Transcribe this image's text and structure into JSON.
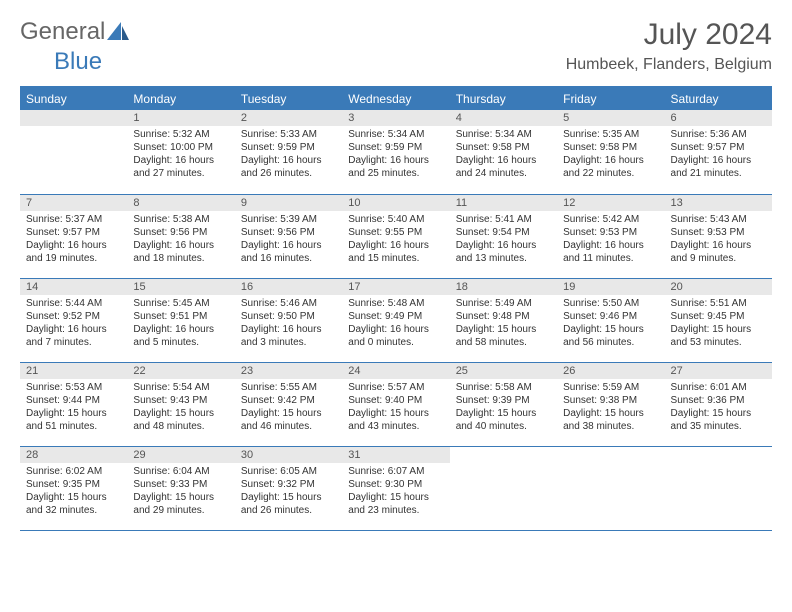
{
  "logo": {
    "text1": "General",
    "text2": "Blue"
  },
  "title": "July 2024",
  "location": "Humbeek, Flanders, Belgium",
  "colors": {
    "accent": "#3a7ab8",
    "header_bg": "#3a7ab8",
    "daynum_bg": "#e8e8e8"
  },
  "weekdays": [
    "Sunday",
    "Monday",
    "Tuesday",
    "Wednesday",
    "Thursday",
    "Friday",
    "Saturday"
  ],
  "weeks": [
    [
      null,
      {
        "n": "1",
        "sr": "Sunrise: 5:32 AM",
        "ss": "Sunset: 10:00 PM",
        "d1": "Daylight: 16 hours",
        "d2": "and 27 minutes."
      },
      {
        "n": "2",
        "sr": "Sunrise: 5:33 AM",
        "ss": "Sunset: 9:59 PM",
        "d1": "Daylight: 16 hours",
        "d2": "and 26 minutes."
      },
      {
        "n": "3",
        "sr": "Sunrise: 5:34 AM",
        "ss": "Sunset: 9:59 PM",
        "d1": "Daylight: 16 hours",
        "d2": "and 25 minutes."
      },
      {
        "n": "4",
        "sr": "Sunrise: 5:34 AM",
        "ss": "Sunset: 9:58 PM",
        "d1": "Daylight: 16 hours",
        "d2": "and 24 minutes."
      },
      {
        "n": "5",
        "sr": "Sunrise: 5:35 AM",
        "ss": "Sunset: 9:58 PM",
        "d1": "Daylight: 16 hours",
        "d2": "and 22 minutes."
      },
      {
        "n": "6",
        "sr": "Sunrise: 5:36 AM",
        "ss": "Sunset: 9:57 PM",
        "d1": "Daylight: 16 hours",
        "d2": "and 21 minutes."
      }
    ],
    [
      {
        "n": "7",
        "sr": "Sunrise: 5:37 AM",
        "ss": "Sunset: 9:57 PM",
        "d1": "Daylight: 16 hours",
        "d2": "and 19 minutes."
      },
      {
        "n": "8",
        "sr": "Sunrise: 5:38 AM",
        "ss": "Sunset: 9:56 PM",
        "d1": "Daylight: 16 hours",
        "d2": "and 18 minutes."
      },
      {
        "n": "9",
        "sr": "Sunrise: 5:39 AM",
        "ss": "Sunset: 9:56 PM",
        "d1": "Daylight: 16 hours",
        "d2": "and 16 minutes."
      },
      {
        "n": "10",
        "sr": "Sunrise: 5:40 AM",
        "ss": "Sunset: 9:55 PM",
        "d1": "Daylight: 16 hours",
        "d2": "and 15 minutes."
      },
      {
        "n": "11",
        "sr": "Sunrise: 5:41 AM",
        "ss": "Sunset: 9:54 PM",
        "d1": "Daylight: 16 hours",
        "d2": "and 13 minutes."
      },
      {
        "n": "12",
        "sr": "Sunrise: 5:42 AM",
        "ss": "Sunset: 9:53 PM",
        "d1": "Daylight: 16 hours",
        "d2": "and 11 minutes."
      },
      {
        "n": "13",
        "sr": "Sunrise: 5:43 AM",
        "ss": "Sunset: 9:53 PM",
        "d1": "Daylight: 16 hours",
        "d2": "and 9 minutes."
      }
    ],
    [
      {
        "n": "14",
        "sr": "Sunrise: 5:44 AM",
        "ss": "Sunset: 9:52 PM",
        "d1": "Daylight: 16 hours",
        "d2": "and 7 minutes."
      },
      {
        "n": "15",
        "sr": "Sunrise: 5:45 AM",
        "ss": "Sunset: 9:51 PM",
        "d1": "Daylight: 16 hours",
        "d2": "and 5 minutes."
      },
      {
        "n": "16",
        "sr": "Sunrise: 5:46 AM",
        "ss": "Sunset: 9:50 PM",
        "d1": "Daylight: 16 hours",
        "d2": "and 3 minutes."
      },
      {
        "n": "17",
        "sr": "Sunrise: 5:48 AM",
        "ss": "Sunset: 9:49 PM",
        "d1": "Daylight: 16 hours",
        "d2": "and 0 minutes."
      },
      {
        "n": "18",
        "sr": "Sunrise: 5:49 AM",
        "ss": "Sunset: 9:48 PM",
        "d1": "Daylight: 15 hours",
        "d2": "and 58 minutes."
      },
      {
        "n": "19",
        "sr": "Sunrise: 5:50 AM",
        "ss": "Sunset: 9:46 PM",
        "d1": "Daylight: 15 hours",
        "d2": "and 56 minutes."
      },
      {
        "n": "20",
        "sr": "Sunrise: 5:51 AM",
        "ss": "Sunset: 9:45 PM",
        "d1": "Daylight: 15 hours",
        "d2": "and 53 minutes."
      }
    ],
    [
      {
        "n": "21",
        "sr": "Sunrise: 5:53 AM",
        "ss": "Sunset: 9:44 PM",
        "d1": "Daylight: 15 hours",
        "d2": "and 51 minutes."
      },
      {
        "n": "22",
        "sr": "Sunrise: 5:54 AM",
        "ss": "Sunset: 9:43 PM",
        "d1": "Daylight: 15 hours",
        "d2": "and 48 minutes."
      },
      {
        "n": "23",
        "sr": "Sunrise: 5:55 AM",
        "ss": "Sunset: 9:42 PM",
        "d1": "Daylight: 15 hours",
        "d2": "and 46 minutes."
      },
      {
        "n": "24",
        "sr": "Sunrise: 5:57 AM",
        "ss": "Sunset: 9:40 PM",
        "d1": "Daylight: 15 hours",
        "d2": "and 43 minutes."
      },
      {
        "n": "25",
        "sr": "Sunrise: 5:58 AM",
        "ss": "Sunset: 9:39 PM",
        "d1": "Daylight: 15 hours",
        "d2": "and 40 minutes."
      },
      {
        "n": "26",
        "sr": "Sunrise: 5:59 AM",
        "ss": "Sunset: 9:38 PM",
        "d1": "Daylight: 15 hours",
        "d2": "and 38 minutes."
      },
      {
        "n": "27",
        "sr": "Sunrise: 6:01 AM",
        "ss": "Sunset: 9:36 PM",
        "d1": "Daylight: 15 hours",
        "d2": "and 35 minutes."
      }
    ],
    [
      {
        "n": "28",
        "sr": "Sunrise: 6:02 AM",
        "ss": "Sunset: 9:35 PM",
        "d1": "Daylight: 15 hours",
        "d2": "and 32 minutes."
      },
      {
        "n": "29",
        "sr": "Sunrise: 6:04 AM",
        "ss": "Sunset: 9:33 PM",
        "d1": "Daylight: 15 hours",
        "d2": "and 29 minutes."
      },
      {
        "n": "30",
        "sr": "Sunrise: 6:05 AM",
        "ss": "Sunset: 9:32 PM",
        "d1": "Daylight: 15 hours",
        "d2": "and 26 minutes."
      },
      {
        "n": "31",
        "sr": "Sunrise: 6:07 AM",
        "ss": "Sunset: 9:30 PM",
        "d1": "Daylight: 15 hours",
        "d2": "and 23 minutes."
      },
      null,
      null,
      null
    ]
  ]
}
